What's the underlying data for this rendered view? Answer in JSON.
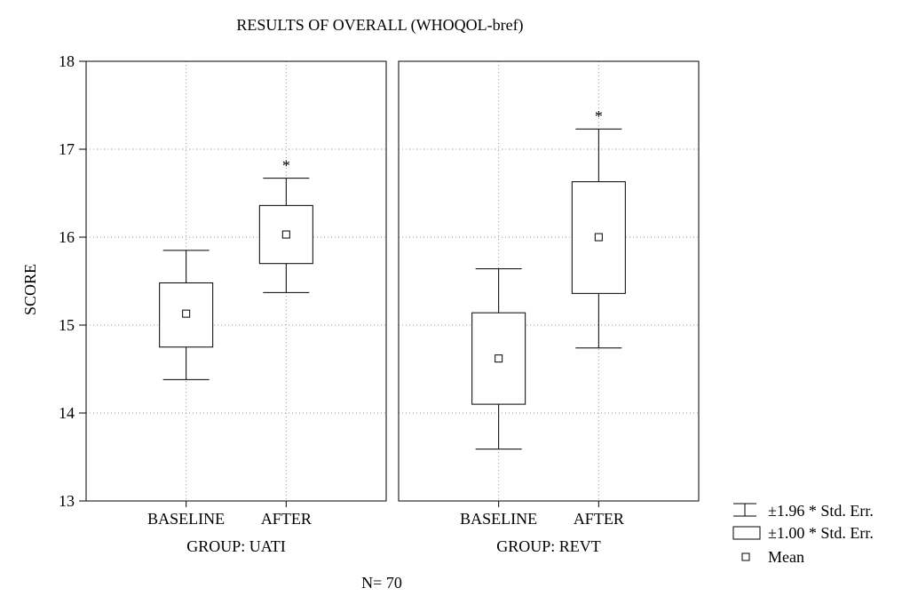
{
  "chart_data": {
    "type": "box",
    "title": "RESULTS OF OVERALL (WHOQOL-bref)",
    "ylabel": "SCORE",
    "ylim": [
      13,
      18
    ],
    "yticks": [
      13,
      14,
      15,
      16,
      17,
      18
    ],
    "grid": true,
    "footer": "N= 70",
    "panels": [
      {
        "group_label": "GROUP: UATI",
        "categories": [
          "BASELINE",
          "AFTER"
        ],
        "boxes": [
          {
            "category": "BASELINE",
            "mean": 15.13,
            "se_low": 14.75,
            "se_high": 15.48,
            "ci_low": 14.38,
            "ci_high": 15.85,
            "marker": ""
          },
          {
            "category": "AFTER",
            "mean": 16.03,
            "se_low": 15.7,
            "se_high": 16.36,
            "ci_low": 15.37,
            "ci_high": 16.67,
            "marker": "*"
          }
        ]
      },
      {
        "group_label": "GROUP: REVT",
        "categories": [
          "BASELINE",
          "AFTER"
        ],
        "boxes": [
          {
            "category": "BASELINE",
            "mean": 14.62,
            "se_low": 14.1,
            "se_high": 15.14,
            "ci_low": 13.59,
            "ci_high": 15.64,
            "marker": ""
          },
          {
            "category": "AFTER",
            "mean": 16.0,
            "se_low": 15.36,
            "se_high": 16.63,
            "ci_low": 14.74,
            "ci_high": 17.23,
            "marker": "*"
          }
        ]
      }
    ],
    "legend": {
      "position": "bottom-right",
      "items": [
        {
          "symbol": "whisker",
          "label": "±1.96 * Std. Err."
        },
        {
          "symbol": "box",
          "label": "±1.00 * Std. Err."
        },
        {
          "symbol": "point",
          "label": "Mean"
        }
      ]
    }
  }
}
